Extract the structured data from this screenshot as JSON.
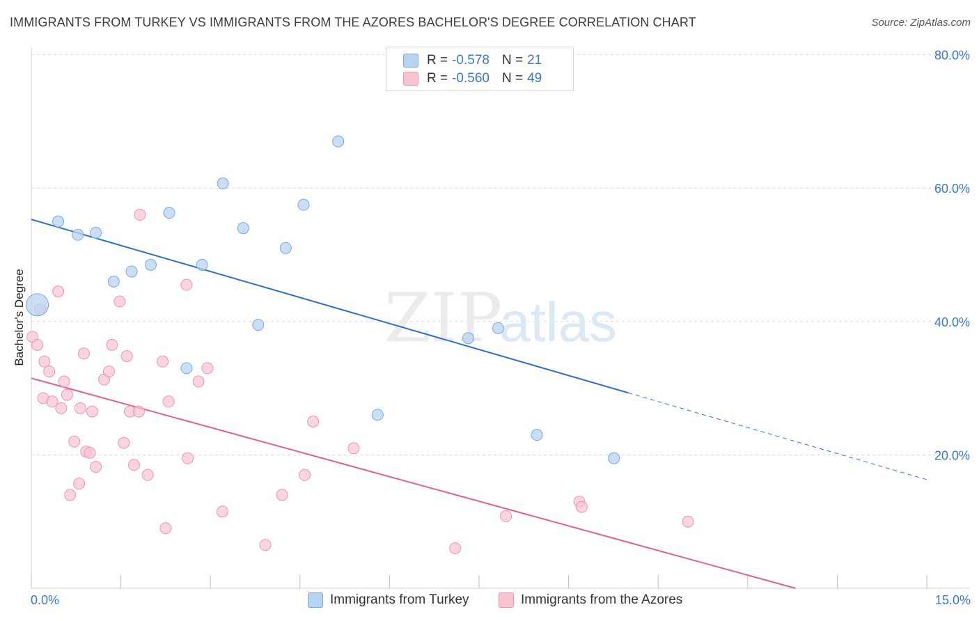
{
  "title": "IMMIGRANTS FROM TURKEY VS IMMIGRANTS FROM THE AZORES BACHELOR'S DEGREE CORRELATION CHART",
  "source": "Source: ZipAtlas.com",
  "watermark": {
    "zip": "ZIP",
    "atlas": "atlas"
  },
  "legend": {
    "rows": [
      {
        "r_label": "R =",
        "r_value": "-0.578",
        "n_label": "N =",
        "n_value": "21"
      },
      {
        "r_label": "R =",
        "r_value": "-0.560",
        "n_label": "N =",
        "n_value": "49"
      }
    ]
  },
  "colors": {
    "turkey_fill": "#b8d3f2",
    "turkey_stroke": "#7aa8de",
    "turkey_line": "#2b6fcc",
    "azores_fill": "#f8c3d1",
    "azores_stroke": "#ec95ae",
    "azores_line": "#e0628c",
    "grid": "#dcdcdc",
    "axis_text": "#3a78c9"
  },
  "chart_data": {
    "type": "scatter",
    "title": "IMMIGRANTS FROM TURKEY VS IMMIGRANTS FROM THE AZORES BACHELOR'S DEGREE CORRELATION CHART",
    "xlabel": "",
    "ylabel": "Bachelor's Degree",
    "xlim": [
      0,
      15
    ],
    "ylim": [
      0,
      82
    ],
    "x_tick_labels": [
      "0.0%",
      "15.0%"
    ],
    "y_ticks": [
      20,
      40,
      60,
      80
    ],
    "y_tick_labels": [
      "20.0%",
      "40.0%",
      "60.0%",
      "80.0%"
    ],
    "grid": true,
    "legend_position": "bottom",
    "series": [
      {
        "name": "Immigrants from Turkey",
        "color": "#7aa8de",
        "points": [
          {
            "x": 0.1,
            "y": 42.5,
            "big": true
          },
          {
            "x": 0.45,
            "y": 55.0
          },
          {
            "x": 0.78,
            "y": 53.0
          },
          {
            "x": 1.08,
            "y": 53.3
          },
          {
            "x": 1.38,
            "y": 46.0
          },
          {
            "x": 1.68,
            "y": 47.5
          },
          {
            "x": 2.0,
            "y": 48.5
          },
          {
            "x": 2.31,
            "y": 56.3
          },
          {
            "x": 2.6,
            "y": 33.0
          },
          {
            "x": 2.86,
            "y": 48.5
          },
          {
            "x": 3.21,
            "y": 60.7
          },
          {
            "x": 3.55,
            "y": 54.0
          },
          {
            "x": 3.8,
            "y": 39.5
          },
          {
            "x": 4.26,
            "y": 51.0
          },
          {
            "x": 4.56,
            "y": 57.5
          },
          {
            "x": 5.14,
            "y": 67.0
          },
          {
            "x": 5.8,
            "y": 26.0
          },
          {
            "x": 7.32,
            "y": 37.5
          },
          {
            "x": 7.82,
            "y": 39.0
          },
          {
            "x": 8.47,
            "y": 23.0
          },
          {
            "x": 9.76,
            "y": 19.5
          }
        ],
        "trend": {
          "x0": 0.0,
          "y0": 55.3,
          "x1": 10.0,
          "y1": 29.3,
          "dash_to_x": 15.0,
          "dash_to_y": 16.3
        }
      },
      {
        "name": "Immigrants from the Azores",
        "color": "#ec95ae",
        "points": [
          {
            "x": 0.02,
            "y": 37.7
          },
          {
            "x": 0.1,
            "y": 36.5
          },
          {
            "x": 0.15,
            "y": 41.8
          },
          {
            "x": 0.45,
            "y": 44.5
          },
          {
            "x": 0.22,
            "y": 34.0
          },
          {
            "x": 0.3,
            "y": 32.5
          },
          {
            "x": 0.2,
            "y": 28.5
          },
          {
            "x": 0.35,
            "y": 28.0
          },
          {
            "x": 0.5,
            "y": 27.0
          },
          {
            "x": 0.55,
            "y": 31.0
          },
          {
            "x": 0.6,
            "y": 29.0
          },
          {
            "x": 0.65,
            "y": 14.0
          },
          {
            "x": 0.72,
            "y": 22.0
          },
          {
            "x": 0.8,
            "y": 15.7
          },
          {
            "x": 0.82,
            "y": 27.0
          },
          {
            "x": 0.88,
            "y": 35.2
          },
          {
            "x": 0.92,
            "y": 20.5
          },
          {
            "x": 0.98,
            "y": 20.3
          },
          {
            "x": 1.02,
            "y": 26.5
          },
          {
            "x": 1.08,
            "y": 18.2
          },
          {
            "x": 1.22,
            "y": 31.3
          },
          {
            "x": 1.3,
            "y": 32.5
          },
          {
            "x": 1.35,
            "y": 36.5
          },
          {
            "x": 1.48,
            "y": 43.0
          },
          {
            "x": 1.55,
            "y": 21.8
          },
          {
            "x": 1.6,
            "y": 34.8
          },
          {
            "x": 1.65,
            "y": 26.5
          },
          {
            "x": 1.72,
            "y": 18.5
          },
          {
            "x": 1.8,
            "y": 26.5
          },
          {
            "x": 1.82,
            "y": 56.0
          },
          {
            "x": 1.95,
            "y": 17.0
          },
          {
            "x": 2.2,
            "y": 34.0
          },
          {
            "x": 2.25,
            "y": 9.0
          },
          {
            "x": 2.3,
            "y": 28.0
          },
          {
            "x": 2.6,
            "y": 45.5
          },
          {
            "x": 2.62,
            "y": 19.5
          },
          {
            "x": 2.8,
            "y": 31.0
          },
          {
            "x": 2.95,
            "y": 33.0
          },
          {
            "x": 3.2,
            "y": 11.5
          },
          {
            "x": 3.92,
            "y": 6.5
          },
          {
            "x": 4.2,
            "y": 14.0
          },
          {
            "x": 4.58,
            "y": 17.0
          },
          {
            "x": 4.72,
            "y": 25.0
          },
          {
            "x": 5.4,
            "y": 21.0
          },
          {
            "x": 7.1,
            "y": 6.0
          },
          {
            "x": 7.95,
            "y": 10.8
          },
          {
            "x": 9.18,
            "y": 13.0
          },
          {
            "x": 9.22,
            "y": 12.2
          },
          {
            "x": 11.0,
            "y": 10.0
          }
        ],
        "trend": {
          "x0": 0.0,
          "y0": 31.5,
          "x1": 12.8,
          "y1": 0.0
        }
      }
    ]
  }
}
